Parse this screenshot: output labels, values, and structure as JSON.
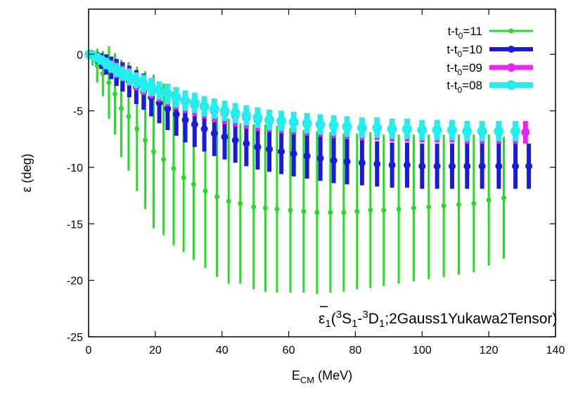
{
  "chart_data": {
    "type": "scatter",
    "xlabel_main": "E",
    "xlabel_sub": "CM",
    "xlabel_unit": " (MeV)",
    "ylabel": "ε (deg)",
    "xlim": [
      0,
      140
    ],
    "ylim": [
      -25,
      4
    ],
    "xticks": [
      0,
      20,
      40,
      60,
      80,
      100,
      120,
      140
    ],
    "yticks": [
      -25,
      -20,
      -15,
      -10,
      -5,
      0
    ],
    "annotation": {
      "eps": "ε",
      "sub1": "1",
      "open": "(",
      "sup3a": "3",
      "S": "S",
      "subS": "1",
      "dash": "-",
      "sup3b": "3",
      "D": "D",
      "subD": "1",
      "rest": ";2Gauss1Yukawa2Tensor)"
    },
    "series": [
      {
        "name": "t-t0=11",
        "name_main": "t-t",
        "name_sub": "0",
        "name_tail": "=11",
        "color": "#22dd22",
        "stroke": 3,
        "r": 3.5,
        "x": [
          0.3,
          1.2,
          2.6,
          4.3,
          6.1,
          7.9,
          9.8,
          12.0,
          14.5,
          17.0,
          19.5,
          22.5,
          25.5,
          28.5,
          31.5,
          35.0,
          38.5,
          42.0,
          45.5,
          49.5,
          53.0,
          56.5,
          60.5,
          64.5,
          68.5,
          72.5,
          76.5,
          80.5,
          84.5,
          88.5,
          93.0,
          97.5,
          102.0,
          106.5,
          111.0,
          115.5,
          120.0,
          124.5
        ],
        "y": [
          0.0,
          -0.3,
          -1.0,
          -1.7,
          -2.5,
          -3.5,
          -4.8,
          -5.5,
          -6.6,
          -7.6,
          -8.6,
          -9.3,
          -10.1,
          -10.9,
          -11.5,
          -12.1,
          -12.6,
          -13.0,
          -13.2,
          -13.5,
          -13.6,
          -13.7,
          -13.8,
          -13.9,
          -14.0,
          -14.0,
          -14.0,
          -13.9,
          -13.8,
          -13.8,
          -13.7,
          -13.6,
          -13.5,
          -13.4,
          -13.3,
          -13.2,
          -12.9,
          -12.7
        ],
        "err": [
          0.1,
          0.7,
          1.5,
          2.0,
          3.2,
          3.6,
          4.3,
          4.8,
          5.5,
          6.1,
          6.8,
          6.7,
          6.8,
          6.6,
          6.7,
          6.8,
          7.1,
          7.3,
          7.1,
          7.3,
          7.4,
          7.4,
          7.3,
          7.2,
          7.2,
          7.1,
          7.0,
          6.9,
          6.9,
          6.7,
          6.6,
          6.5,
          6.4,
          6.3,
          6.2,
          6.1,
          5.8,
          5.4
        ]
      },
      {
        "name": "t-t0=10",
        "name_main": "t-t",
        "name_sub": "0",
        "name_tail": "=10",
        "color": "#1a1adb",
        "stroke": 6,
        "r": 5,
        "x": [
          0.3,
          1.3,
          2.5,
          3.8,
          5.3,
          6.8,
          8.4,
          10.2,
          12.2,
          14.3,
          16.5,
          18.8,
          21.2,
          23.7,
          26.3,
          29.0,
          31.8,
          34.7,
          37.7,
          40.8,
          44.0,
          47.3,
          50.7,
          54.2,
          57.8,
          61.5,
          65.5,
          69.5,
          73.5,
          77.5,
          82.0,
          86.5,
          91.0,
          95.5,
          100.0,
          104.5,
          109.0,
          113.5,
          118.0,
          123.0,
          128.0,
          132.0
        ],
        "y": [
          0.0,
          -0.1,
          -0.3,
          -0.6,
          -0.9,
          -1.2,
          -1.6,
          -2.0,
          -2.4,
          -2.9,
          -3.3,
          -3.8,
          -4.3,
          -4.8,
          -5.3,
          -5.8,
          -6.2,
          -6.6,
          -7.0,
          -7.3,
          -7.6,
          -7.9,
          -8.2,
          -8.4,
          -8.6,
          -8.8,
          -9.0,
          -9.2,
          -9.4,
          -9.5,
          -9.6,
          -9.7,
          -9.8,
          -9.8,
          -9.9,
          -9.9,
          -9.9,
          -9.9,
          -9.9,
          -9.9,
          -9.9,
          -9.9
        ],
        "err": [
          0.1,
          0.3,
          0.5,
          0.7,
          0.9,
          1.0,
          1.2,
          1.3,
          1.4,
          1.5,
          1.6,
          1.7,
          1.8,
          1.9,
          1.9,
          2.0,
          2.0,
          2.0,
          2.0,
          2.0,
          2.0,
          2.0,
          2.0,
          2.0,
          2.0,
          2.0,
          2.0,
          2.0,
          2.0,
          2.0,
          2.0,
          2.0,
          2.0,
          2.0,
          2.0,
          2.0,
          2.0,
          2.0,
          2.0,
          2.0,
          2.0,
          2.0
        ]
      },
      {
        "name": "t-t0=09",
        "name_main": "t-t",
        "name_sub": "0",
        "name_tail": "=09",
        "color": "#ee22ee",
        "stroke": 7,
        "r": 6,
        "x": [
          0.3,
          1.3,
          2.5,
          3.8,
          5.3,
          6.8,
          8.4,
          10.2,
          12.2,
          14.3,
          16.5,
          18.8,
          21.2,
          23.7,
          26.3,
          29.0,
          31.8,
          34.7,
          37.7,
          40.8,
          44.0,
          47.3,
          50.7,
          54.2,
          57.8,
          61.5,
          65.5,
          69.5,
          73.5,
          77.5,
          82.0,
          86.5,
          91.0,
          95.5,
          100.0,
          104.5,
          109.0,
          113.5,
          118.0,
          123.0,
          128.0,
          131.0
        ],
        "y": [
          0.0,
          -0.1,
          -0.3,
          -0.5,
          -0.8,
          -1.1,
          -1.4,
          -1.7,
          -2.0,
          -2.4,
          -2.7,
          -3.0,
          -3.3,
          -3.6,
          -3.9,
          -4.2,
          -4.5,
          -4.7,
          -5.0,
          -5.2,
          -5.4,
          -5.6,
          -5.8,
          -5.9,
          -6.0,
          -6.1,
          -6.2,
          -6.3,
          -6.4,
          -6.5,
          -6.6,
          -6.6,
          -6.7,
          -6.7,
          -6.8,
          -6.8,
          -6.8,
          -6.9,
          -6.9,
          -6.9,
          -6.9,
          -6.9
        ],
        "err": [
          0.1,
          0.2,
          0.3,
          0.4,
          0.5,
          0.6,
          0.7,
          0.7,
          0.8,
          0.8,
          0.9,
          0.9,
          0.9,
          1.0,
          1.0,
          1.0,
          1.0,
          1.0,
          1.0,
          1.0,
          1.0,
          1.0,
          1.0,
          1.0,
          1.0,
          1.0,
          1.0,
          1.0,
          1.0,
          1.0,
          1.0,
          1.0,
          1.0,
          1.0,
          1.0,
          1.0,
          1.0,
          1.0,
          1.0,
          1.0,
          1.0,
          1.0
        ]
      },
      {
        "name": "t-t0=08",
        "name_main": "t-t",
        "name_sub": "0",
        "name_tail": "=08",
        "color": "#22eeee",
        "stroke": 8,
        "r": 7,
        "x": [
          0.3,
          1.3,
          2.5,
          3.8,
          5.3,
          6.8,
          8.4,
          10.2,
          12.2,
          14.3,
          16.5,
          18.8,
          21.2,
          23.7,
          26.3,
          29.0,
          31.8,
          34.7,
          37.7,
          40.8,
          44.0,
          47.3,
          50.7,
          54.2,
          57.8,
          61.5,
          65.5,
          69.5,
          73.5,
          77.5,
          82.0,
          86.5,
          91.0,
          95.5,
          100.0,
          104.5,
          109.0,
          113.5,
          118.0,
          123.0,
          128.0
        ],
        "y": [
          0.0,
          -0.1,
          -0.3,
          -0.5,
          -0.8,
          -1.1,
          -1.4,
          -1.7,
          -2.0,
          -2.3,
          -2.6,
          -2.9,
          -3.2,
          -3.5,
          -3.8,
          -4.1,
          -4.3,
          -4.6,
          -4.8,
          -5.0,
          -5.2,
          -5.4,
          -5.6,
          -5.8,
          -5.9,
          -6.0,
          -6.1,
          -6.2,
          -6.3,
          -6.4,
          -6.5,
          -6.5,
          -6.6,
          -6.6,
          -6.7,
          -6.7,
          -6.7,
          -6.8,
          -6.8,
          -6.8,
          -6.8
        ],
        "err": [
          0.1,
          0.2,
          0.3,
          0.4,
          0.5,
          0.5,
          0.6,
          0.6,
          0.7,
          0.7,
          0.8,
          0.8,
          0.8,
          0.9,
          0.9,
          0.9,
          0.9,
          0.9,
          0.9,
          0.9,
          0.9,
          0.9,
          0.9,
          0.9,
          0.9,
          0.9,
          0.9,
          0.9,
          0.9,
          0.9,
          0.9,
          0.9,
          0.9,
          0.9,
          0.9,
          0.9,
          0.9,
          0.9,
          0.9,
          0.9,
          0.9
        ]
      }
    ]
  }
}
